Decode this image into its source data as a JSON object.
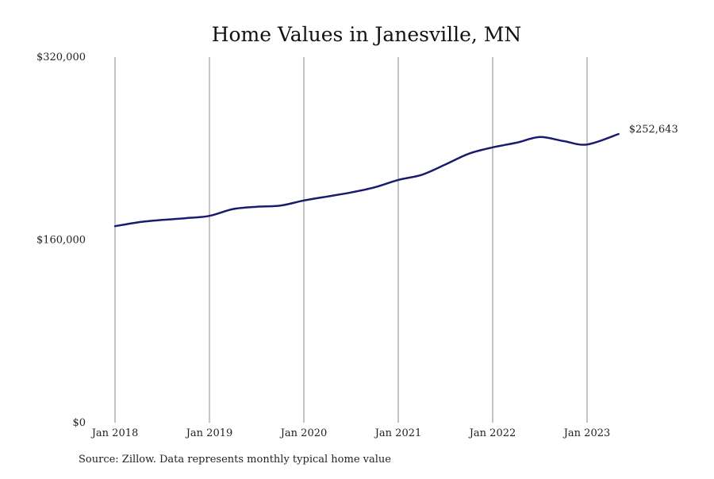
{
  "chart_data": {
    "type": "line",
    "title": "Home Values in Janesville, MN",
    "xlabel": "",
    "ylabel": "",
    "ylim": [
      0,
      320000
    ],
    "yticks": [
      {
        "value": 0,
        "label": "$0"
      },
      {
        "value": 160000,
        "label": "$160,000"
      },
      {
        "value": 320000,
        "label": "$320,000"
      }
    ],
    "xlim": [
      "2018-01",
      "2023-05"
    ],
    "xticks": [
      {
        "date": "2018-01",
        "label": "Jan 2018"
      },
      {
        "date": "2019-01",
        "label": "Jan 2019"
      },
      {
        "date": "2020-01",
        "label": "Jan 2020"
      },
      {
        "date": "2021-01",
        "label": "Jan 2021"
      },
      {
        "date": "2022-01",
        "label": "Jan 2022"
      },
      {
        "date": "2023-01",
        "label": "Jan 2023"
      }
    ],
    "grid": "vertical",
    "legend": "none",
    "line_color": "#1a1a6e",
    "end_label": "$252,643",
    "series": [
      {
        "x": [
          "2018-01",
          "2018-04",
          "2018-07",
          "2018-10",
          "2019-01",
          "2019-04",
          "2019-07",
          "2019-10",
          "2020-01",
          "2020-04",
          "2020-07",
          "2020-10",
          "2021-01",
          "2021-04",
          "2021-07",
          "2021-10",
          "2022-01",
          "2022-04",
          "2022-07",
          "2022-10",
          "2023-01",
          "2023-05"
        ],
        "values": [
          172000,
          175500,
          177500,
          179000,
          181000,
          187000,
          189000,
          190000,
          194500,
          198000,
          201500,
          206000,
          212500,
          217000,
          226000,
          235500,
          241000,
          245000,
          250000,
          246500,
          243500,
          252643
        ]
      }
    ]
  },
  "footer": {
    "source": "Source: Zillow. Data represents monthly typical home value"
  }
}
